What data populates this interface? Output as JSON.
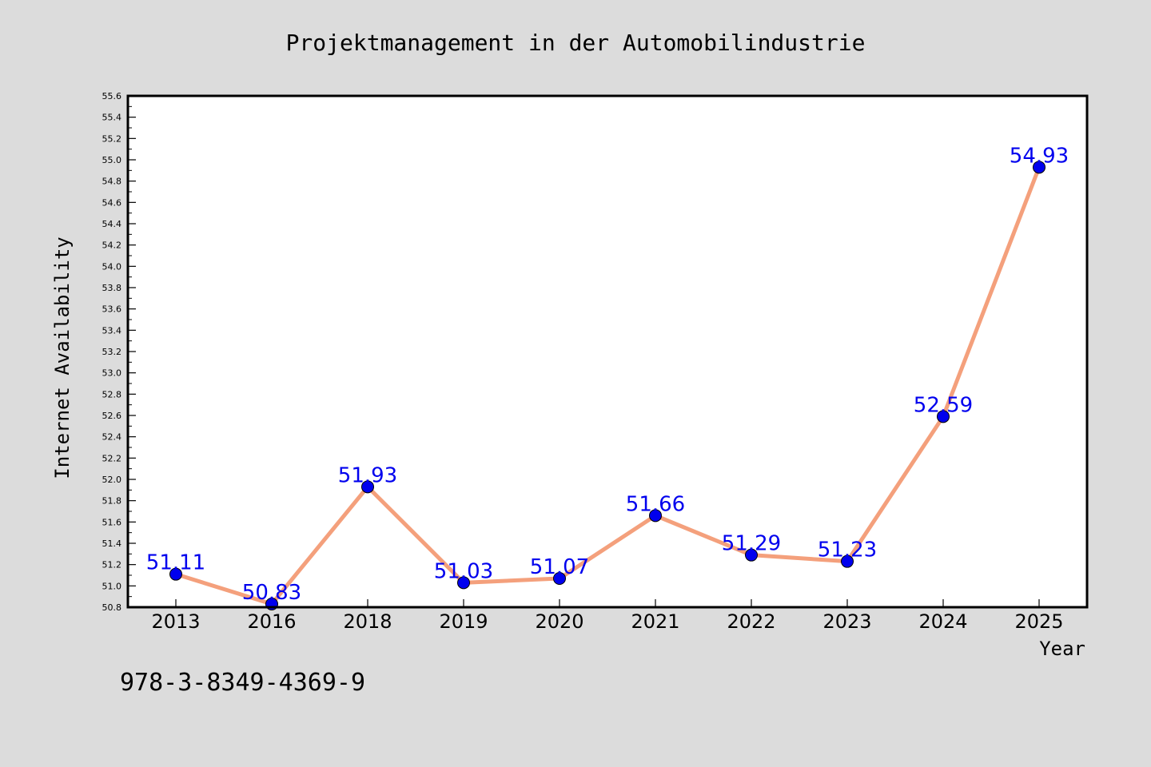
{
  "chart_data": {
    "type": "line",
    "title": "Projektmanagement in der Automobilindustrie",
    "xlabel": "Year",
    "ylabel": "Internet Availability",
    "categories": [
      "2013",
      "2016",
      "2018",
      "2019",
      "2020",
      "2021",
      "2022",
      "2023",
      "2024",
      "2025"
    ],
    "series": [
      {
        "values": [
          51.11,
          50.83,
          51.93,
          51.03,
          51.07,
          51.66,
          51.29,
          51.23,
          52.59,
          54.93
        ],
        "data_labels": [
          "51.11",
          "50.83",
          "51.93",
          "51.03",
          "51.07",
          "51.66",
          "51.29",
          "51.23",
          "52.59",
          "54.93"
        ]
      }
    ],
    "ylim": [
      50.8,
      55.6
    ],
    "yticks": [
      "50.8",
      "51.0",
      "51.2",
      "51.4",
      "51.6",
      "51.8",
      "52.0",
      "52.2",
      "52.4",
      "52.6",
      "52.8",
      "53.0",
      "53.2",
      "53.4",
      "53.6",
      "53.8",
      "54.0",
      "54.2",
      "54.4",
      "54.6",
      "54.8",
      "55.0",
      "55.2",
      "55.4",
      "55.6"
    ],
    "grid": false,
    "legend": "none",
    "colors": {
      "line": "#f4a07c",
      "marker": "#0000ee",
      "label": "#0000ee",
      "background": "#dcdcdc",
      "plot_background": "#ffffff"
    }
  },
  "footer": {
    "isbn": "978-3-8349-4369-9"
  }
}
